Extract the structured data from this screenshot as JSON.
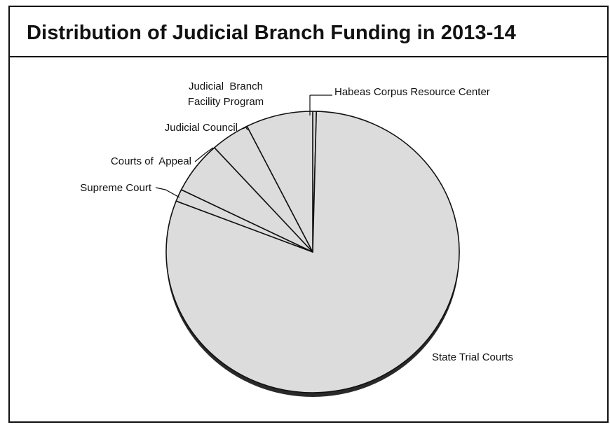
{
  "colors": {
    "slice_fill": "#dcdcdc",
    "slice_stroke": "#111111",
    "pie_edge": "#2a2a2a",
    "text": "#111111"
  },
  "chart_data": {
    "type": "pie",
    "title": "Distribution of Judicial Branch Funding in 2013-14",
    "start_angle": "top",
    "direction": "clockwise",
    "slices": [
      {
        "label": "Habeas Corpus Resource Center",
        "value": 0.4
      },
      {
        "label": "State Trial Courts",
        "value": 80.5
      },
      {
        "label": "Supreme Court",
        "value": 1.4
      },
      {
        "label": "Courts of  Appeal",
        "value": 6.0
      },
      {
        "label": "Judicial Council",
        "value": 4.3
      },
      {
        "label": [
          "Judicial  Branch",
          "Facility Program"
        ],
        "value": 7.4
      }
    ]
  }
}
